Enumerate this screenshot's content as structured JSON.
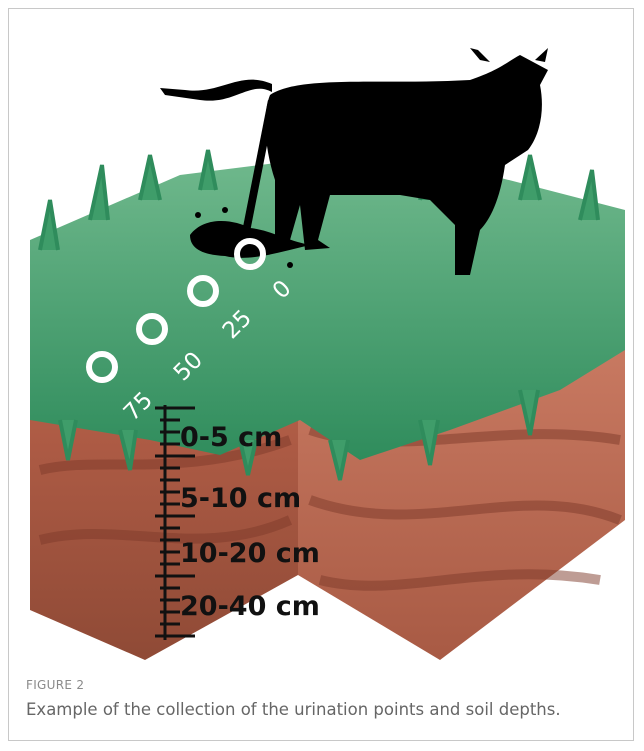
{
  "figure": {
    "distance_labels": [
      "0",
      "25",
      "50",
      "75"
    ],
    "depth_labels": [
      "0-5 cm",
      "5-10 cm",
      "10-20 cm",
      "20-40 cm"
    ],
    "caption": {
      "label": "FIGURE 2",
      "text": "Example of the collection of the urination points and soil depths."
    }
  }
}
